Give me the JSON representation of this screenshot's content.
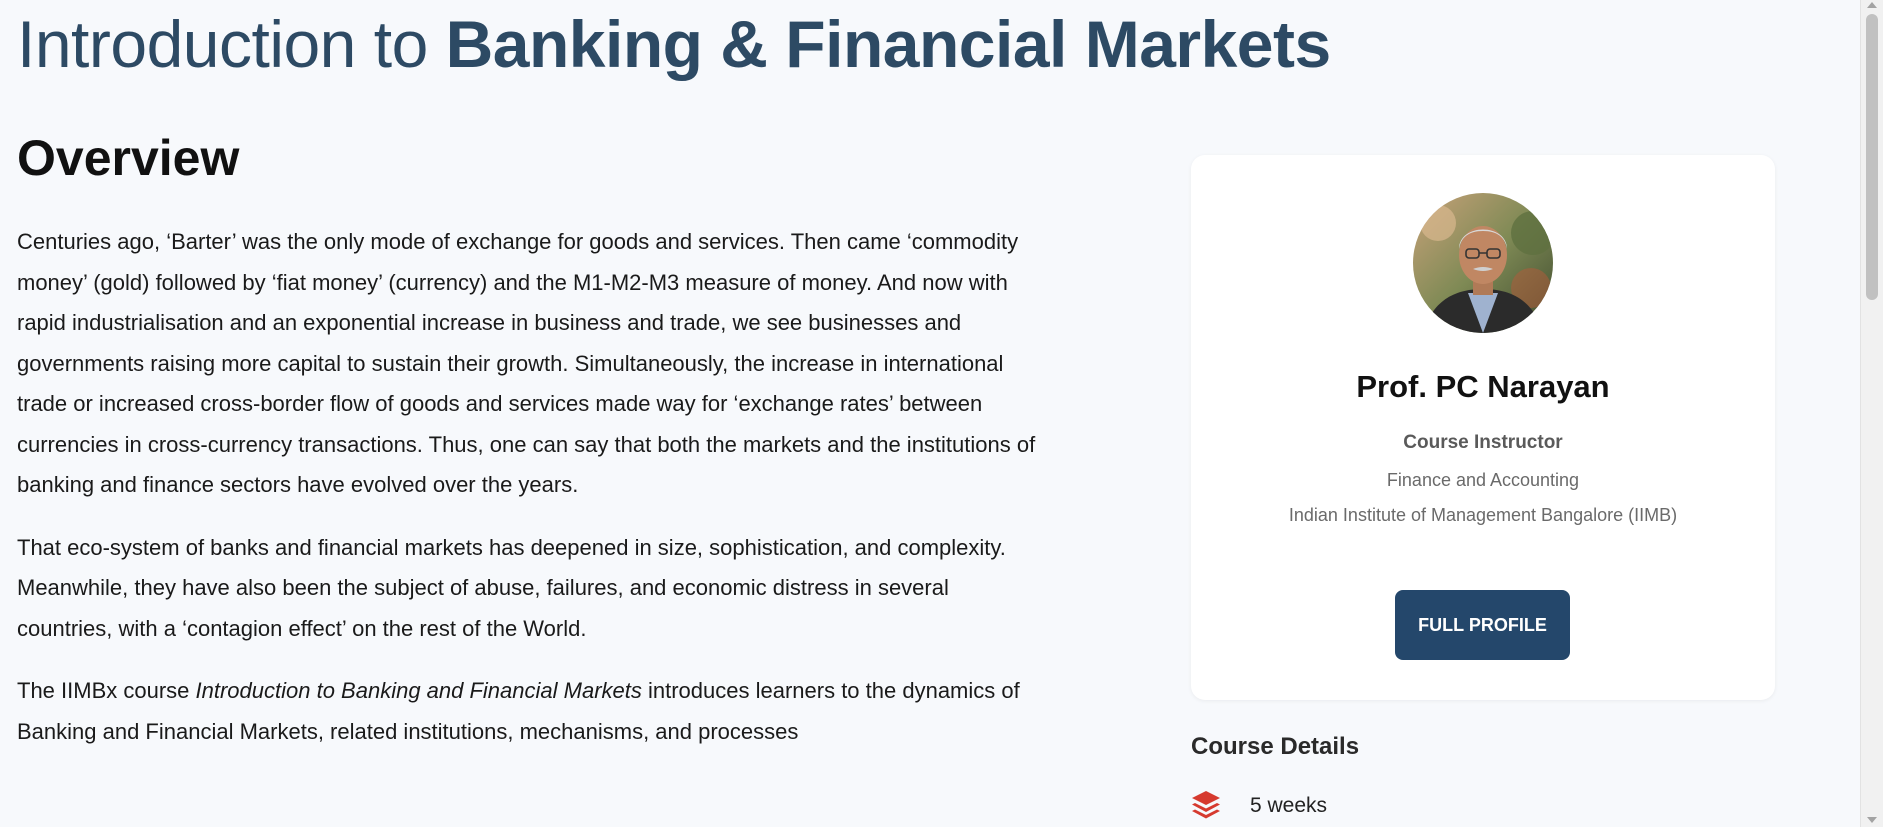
{
  "page": {
    "title_light": "Introduction to ",
    "title_bold": "Banking & Financial Markets"
  },
  "overview": {
    "heading": "Overview",
    "paragraph1": "Centuries ago, ‘Barter’ was the only mode of exchange for goods and services. Then came ‘commodity money’ (gold) followed by ‘fiat money’ (currency) and the M1-M2-M3 measure of money. And now with rapid industrialisation and an exponential increase in business and trade, we see businesses and governments raising more capital to sustain their growth. Simultaneously, the increase in international trade or increased cross-border flow of goods and services made way for ‘exchange rates’ between currencies in cross-currency transactions. Thus, one can say that both the markets and the institutions of banking and finance sectors have evolved over the years.",
    "paragraph2": "That eco-system of banks and financial markets has deepened in size, sophistication, and complexity. Meanwhile, they have also been the subject of abuse, failures, and economic distress in several countries, with a ‘contagion effect’ on the rest of the World.",
    "paragraph3_prefix": "The IIMBx course ",
    "paragraph3_course": "Introduction to Banking and Financial Markets",
    "paragraph3_suffix": " introduces learners to the dynamics of Banking and Financial Markets, related institutions, mechanisms, and processes"
  },
  "instructor": {
    "name": "Prof. PC Narayan",
    "role": "Course Instructor",
    "department": "Finance and Accounting",
    "institution": "Indian Institute of Management Bangalore (IIMB)",
    "button_label": "FULL PROFILE"
  },
  "course_details": {
    "heading": "Course Details",
    "duration": "5 weeks",
    "duration_icon": "layers-icon",
    "icon_color": "#d63a2f"
  },
  "colors": {
    "title": "#2d4a64",
    "button": "#24476b",
    "background": "#f7f9fc"
  }
}
